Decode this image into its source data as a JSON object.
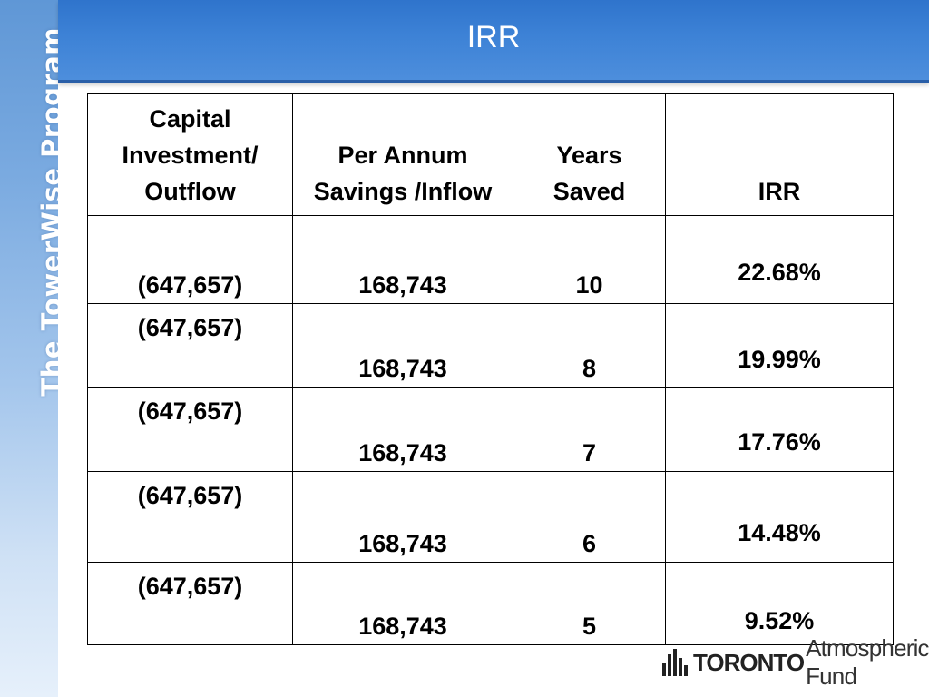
{
  "sidebar": {
    "title": "The TowerWise Program"
  },
  "header": {
    "title": "IRR"
  },
  "table": {
    "headers": [
      "Capital Investment/ Outflow",
      "Per Annum Savings /Inflow",
      "Years Saved",
      "IRR"
    ],
    "rows": [
      {
        "outflow": "(647,657)",
        "inflow": "168,743",
        "years": "10",
        "irr": "22.68%"
      },
      {
        "outflow": "(647,657)",
        "inflow": "168,743",
        "years": "8",
        "irr": "19.99%"
      },
      {
        "outflow": "(647,657)",
        "inflow": "168,743",
        "years": "7",
        "irr": "17.76%"
      },
      {
        "outflow": "(647,657)",
        "inflow": "168,743",
        "years": "6",
        "irr": "14.48%"
      },
      {
        "outflow": "(647,657)",
        "inflow": "168,743",
        "years": "5",
        "irr": "9.52%"
      }
    ]
  },
  "logo": {
    "bold": "TORONTO",
    "rest": "Atmospheric Fund"
  },
  "colors": {
    "header": "#3d82d6",
    "irr_value": "#2a5fa0"
  }
}
